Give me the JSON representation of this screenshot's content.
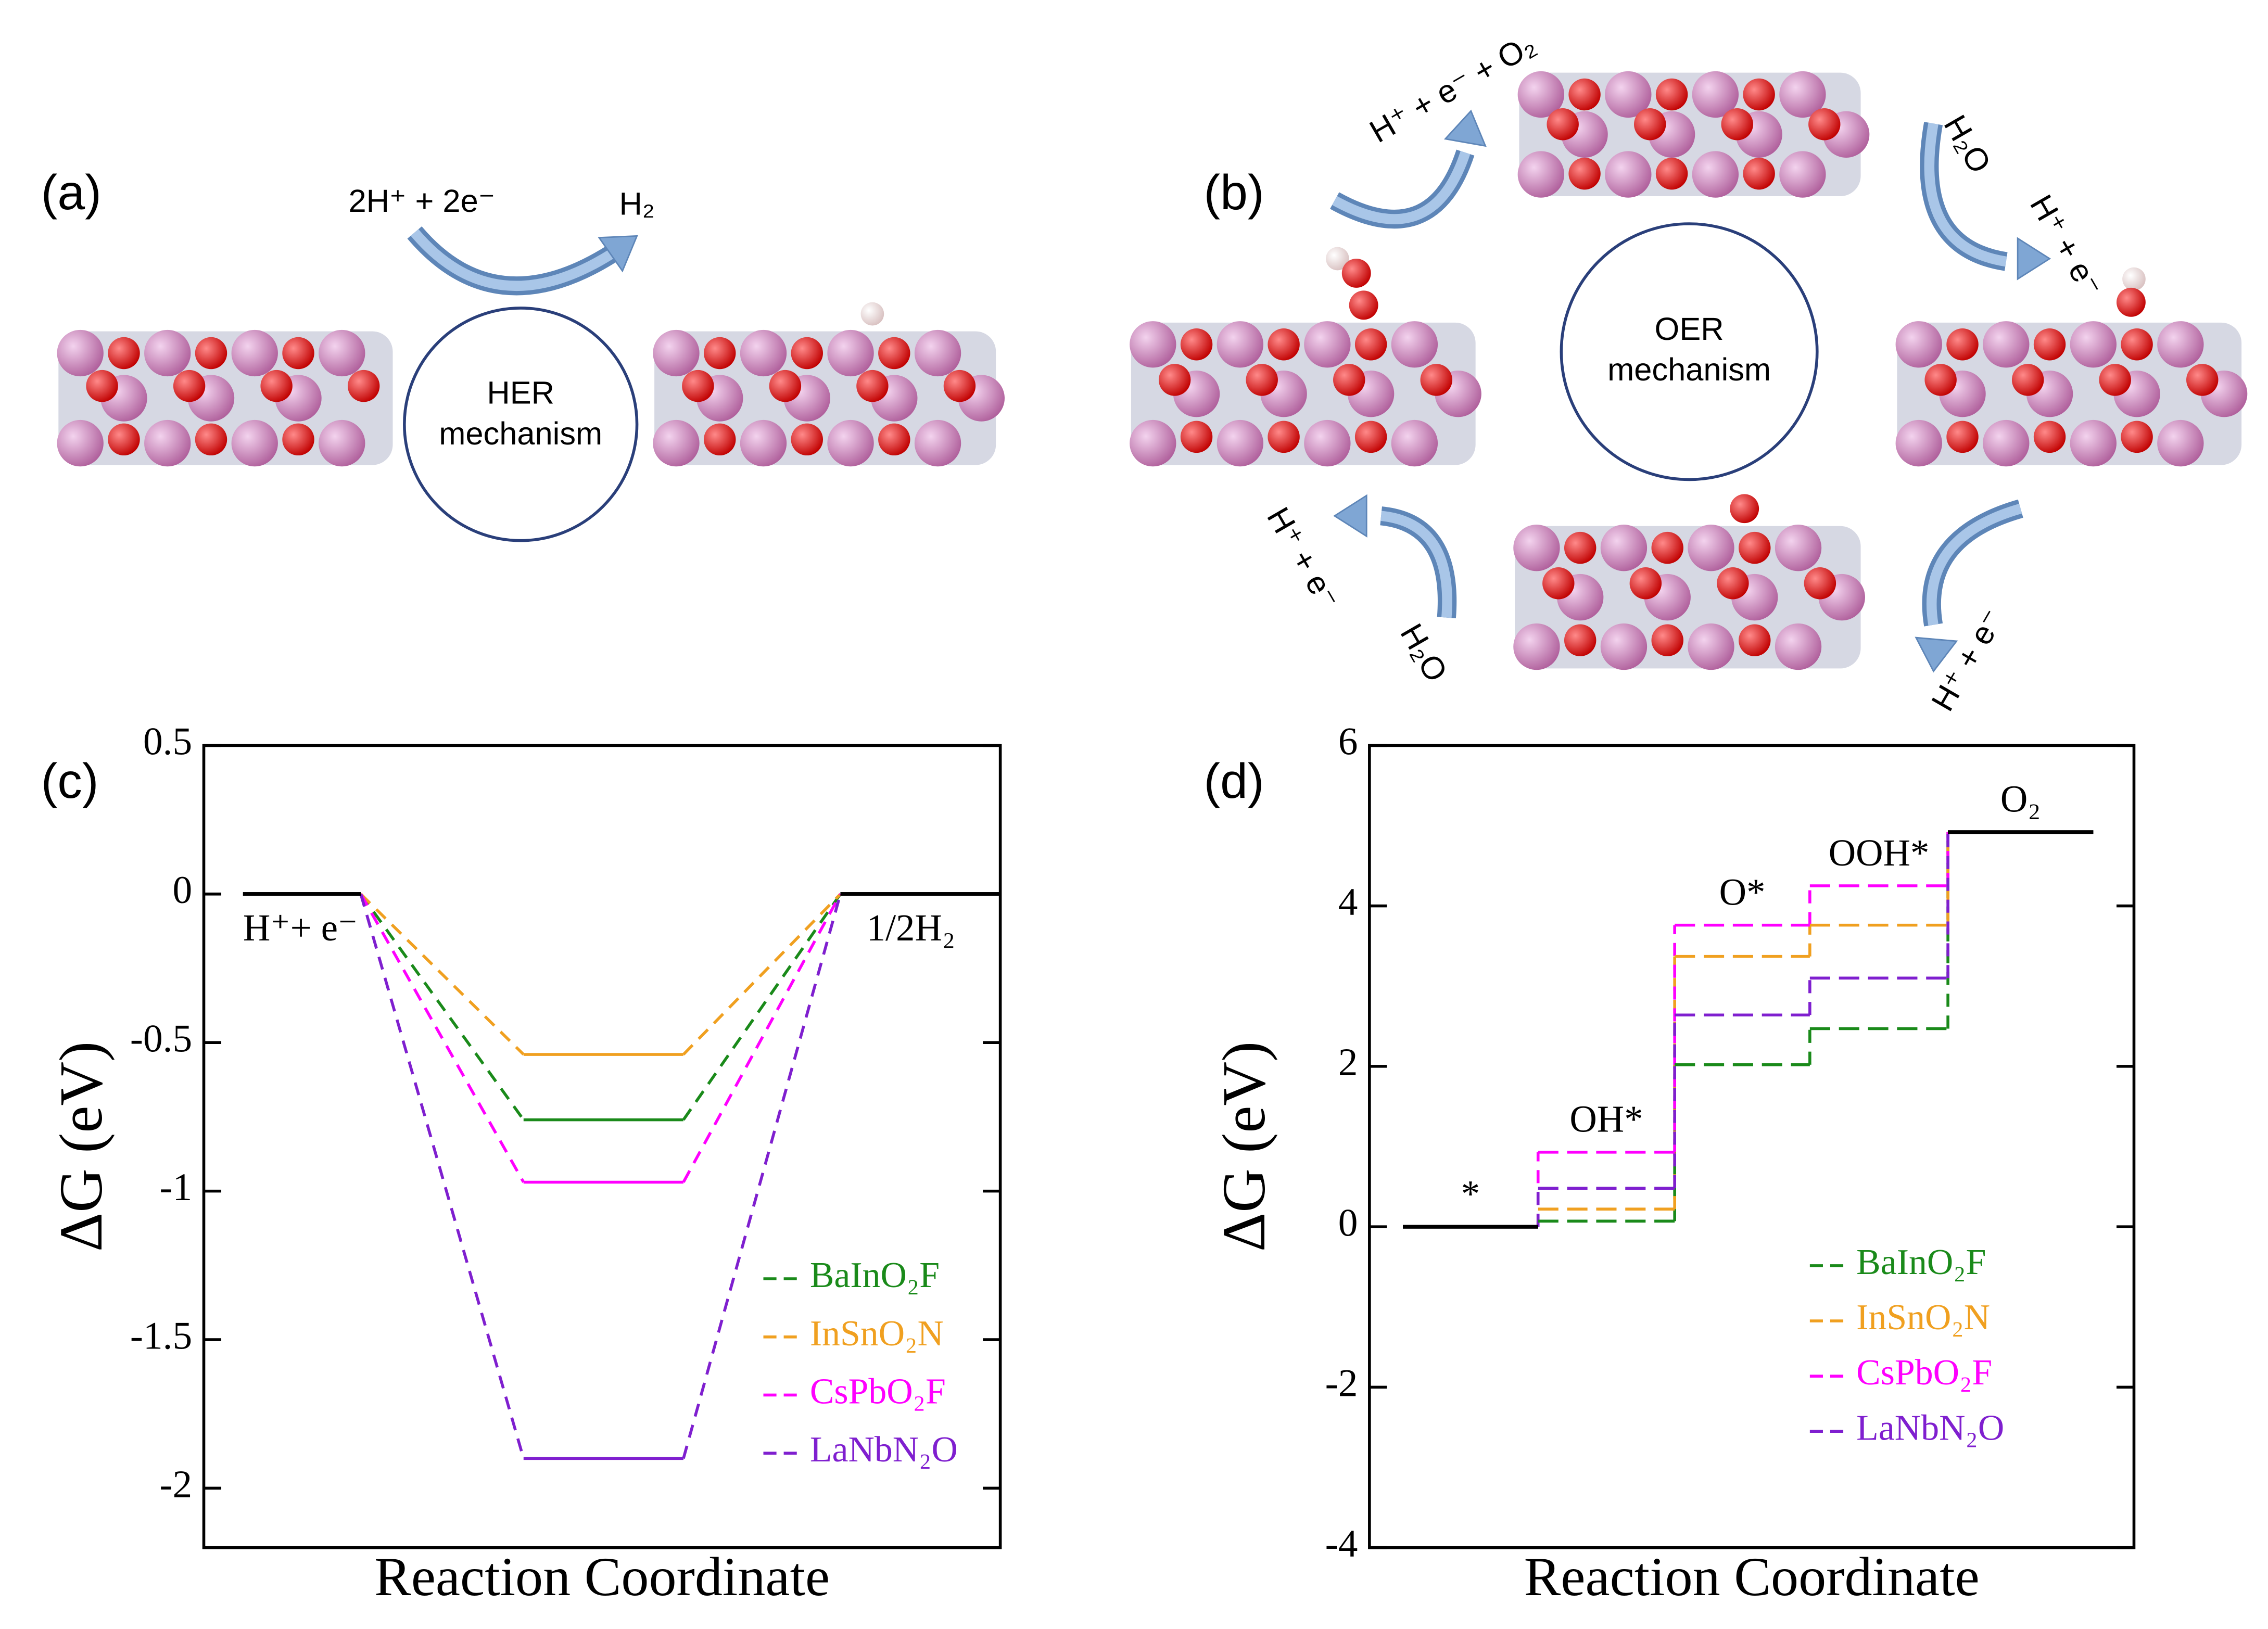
{
  "panels": {
    "a": {
      "label": "(a)",
      "reactants": "2H⁺ + 2e⁻",
      "product": "H₂",
      "mechanism": [
        "HER",
        "mechanism"
      ]
    },
    "b": {
      "label": "(b)",
      "mechanism": [
        "OER",
        "mechanism"
      ],
      "steps": [
        "H⁺ + e⁻ + O₂",
        "H₂O",
        "H⁺ + e⁻",
        "H⁺ + e⁻",
        "H₂O",
        "H⁺ + e⁻"
      ]
    }
  },
  "chart_data": [
    {
      "panel": "(c)",
      "type": "energy-level",
      "ylabel": "ΔG (eV)",
      "xlabel": "Reaction Coordinate",
      "categories": [
        "H⁺+ e⁻",
        null,
        "1/2H₂"
      ],
      "ylim": [
        -2.2,
        0.5
      ],
      "yticks": [
        -2,
        -1.5,
        -1,
        -0.5,
        0,
        0.5
      ],
      "legend": "lower right",
      "level_dash": false,
      "end_color": "#000000",
      "series": [
        {
          "name": "BaInO₂F",
          "color": "#1a8a1a",
          "values": [
            0,
            -0.76,
            0
          ]
        },
        {
          "name": "InSnO₂N",
          "color": "#f0a020",
          "values": [
            0,
            -0.54,
            0
          ]
        },
        {
          "name": "CsPbO₂F",
          "color": "#ff00ff",
          "values": [
            0,
            -0.97,
            0
          ]
        },
        {
          "name": "LaNbN₂O",
          "color": "#7f1fcf",
          "values": [
            0,
            -1.9,
            0
          ]
        }
      ]
    },
    {
      "panel": "(d)",
      "type": "energy-level",
      "ylabel": "ΔG (eV)",
      "xlabel": "Reaction Coordinate",
      "categories": [
        "*",
        "OH*",
        "O*",
        "OOH*",
        "O₂"
      ],
      "ylim": [
        -4,
        6
      ],
      "yticks": [
        -4,
        -2,
        0,
        2,
        4,
        6
      ],
      "legend": "lower right",
      "level_dash": true,
      "end_color": "#000000",
      "series": [
        {
          "name": "BaInO₂F",
          "color": "#1a8a1a",
          "values": [
            0,
            0.07,
            2.02,
            2.47,
            4.92
          ]
        },
        {
          "name": "InSnO₂N",
          "color": "#f0a020",
          "values": [
            0,
            0.22,
            3.37,
            3.76,
            4.92
          ]
        },
        {
          "name": "CsPbO₂F",
          "color": "#ff00ff",
          "values": [
            0,
            0.93,
            3.76,
            4.25,
            4.92
          ]
        },
        {
          "name": "LaNbN₂O",
          "color": "#7f1fcf",
          "values": [
            0,
            0.48,
            2.64,
            3.1,
            4.92
          ]
        }
      ]
    }
  ]
}
